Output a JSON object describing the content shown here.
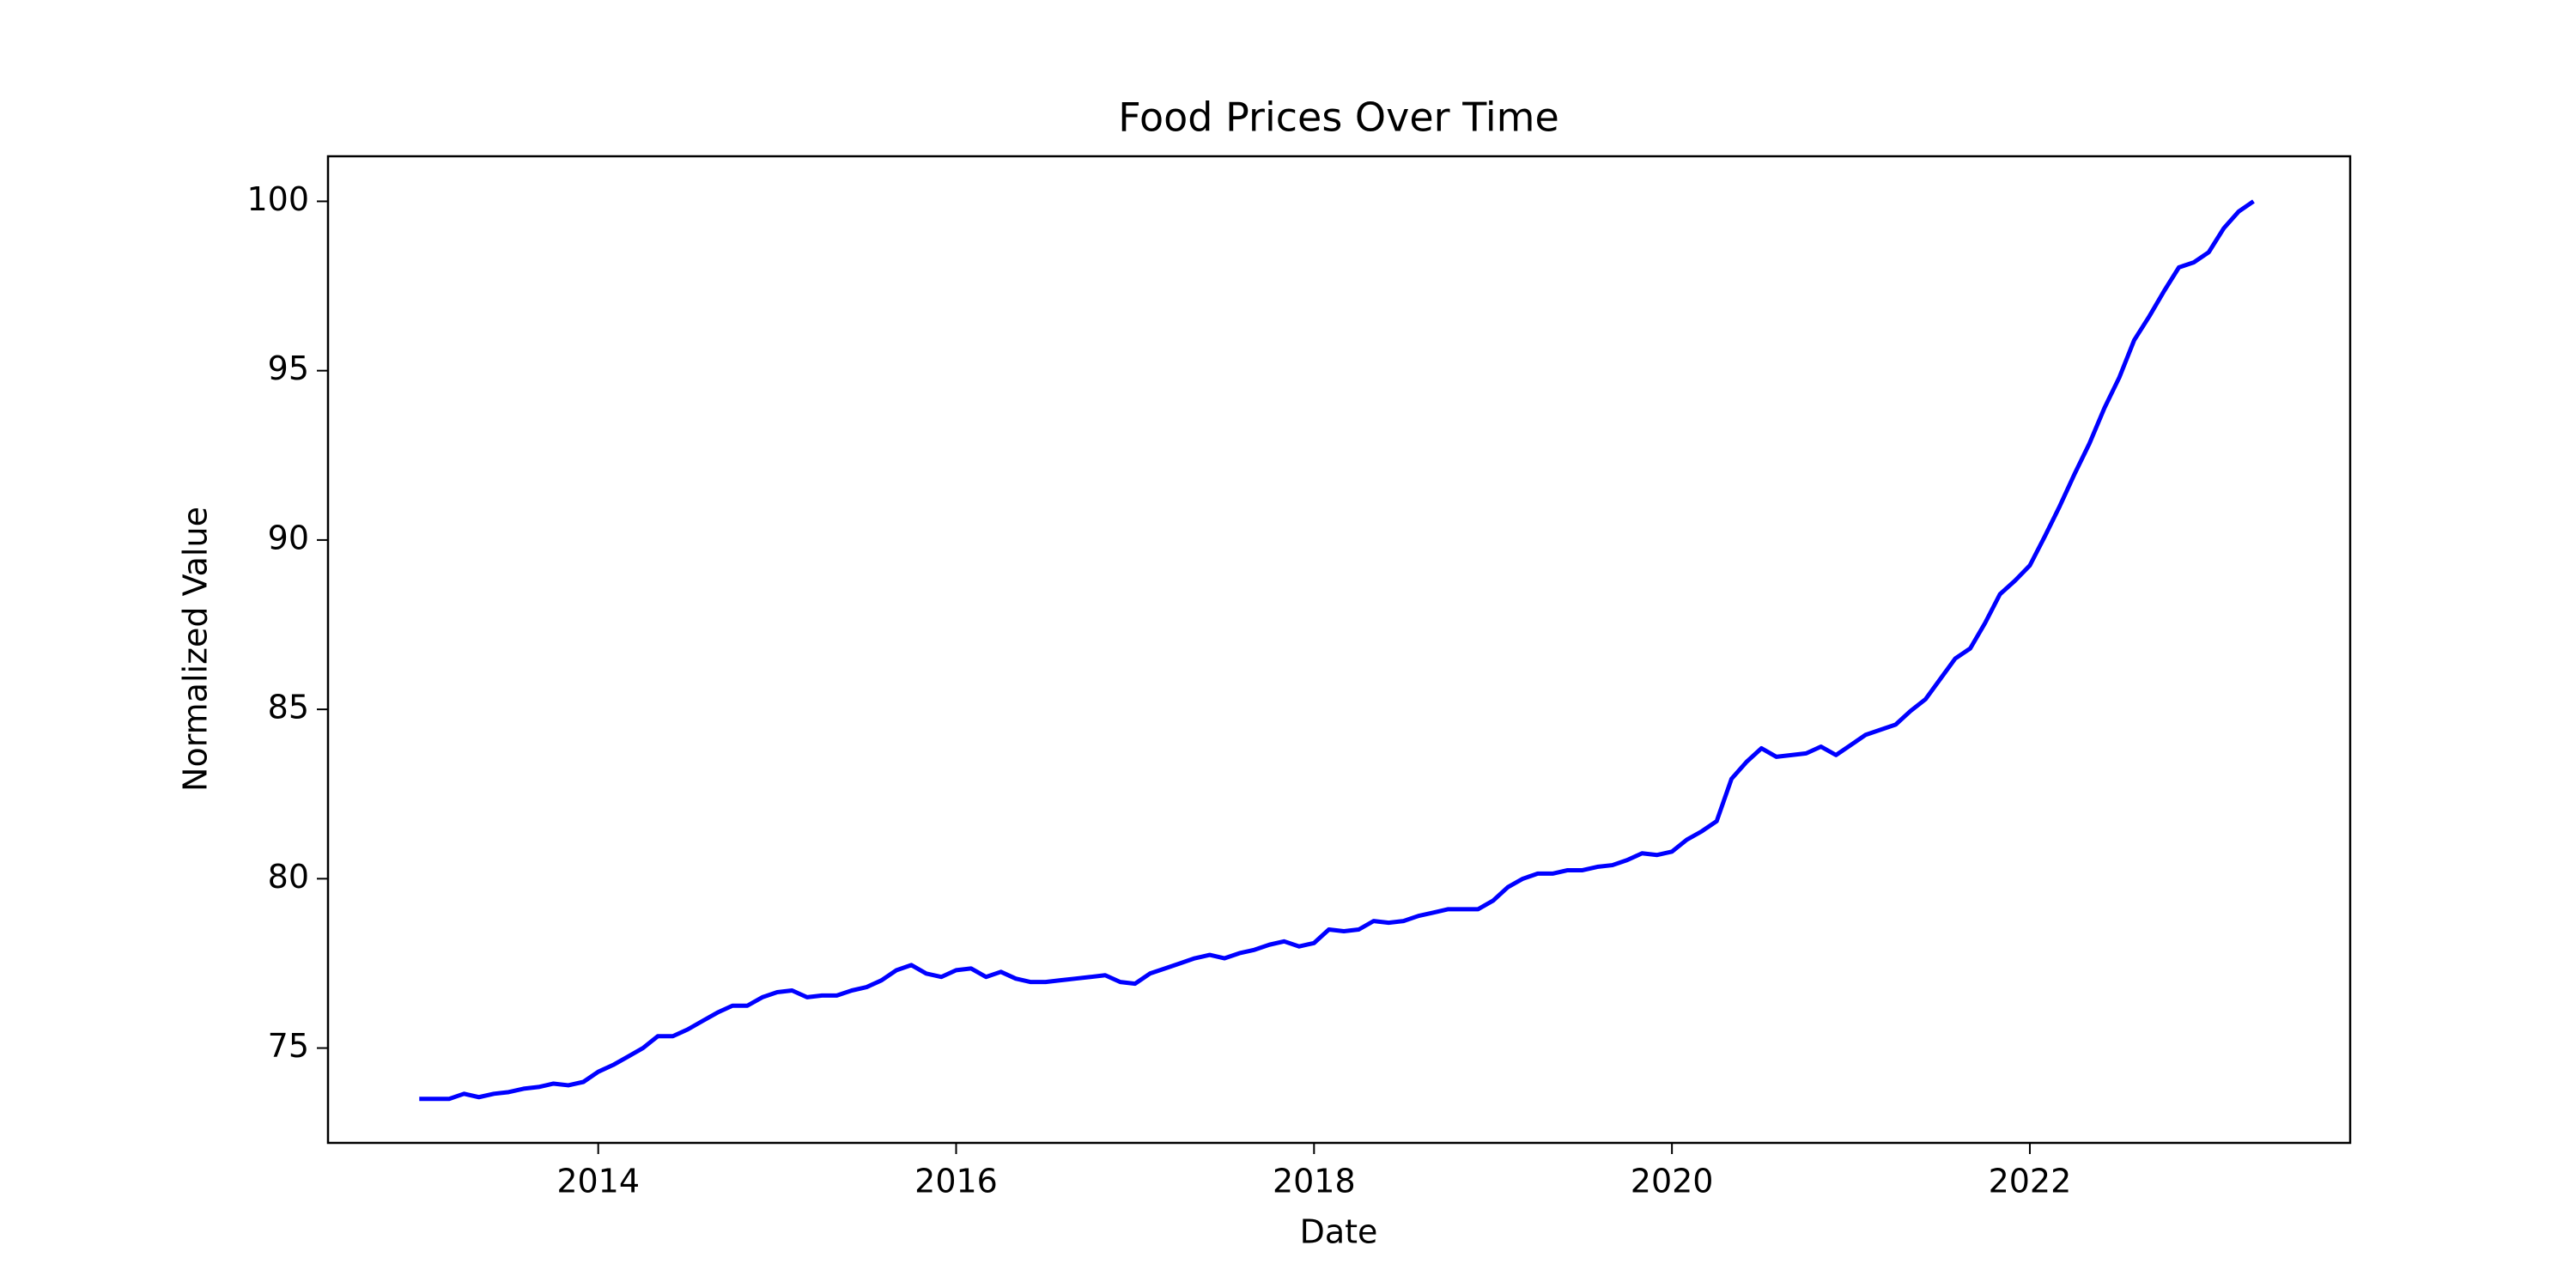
{
  "chart_data": {
    "type": "line",
    "title": "Food Prices Over Time",
    "xlabel": "Date",
    "ylabel": "Normalized Value",
    "color": "#0000ff",
    "x": [
      2013,
      2013.083,
      2013.167,
      2013.25,
      2013.333,
      2013.417,
      2013.5,
      2013.583,
      2013.667,
      2013.75,
      2013.833,
      2013.917,
      2014,
      2014.083,
      2014.167,
      2014.25,
      2014.333,
      2014.417,
      2014.5,
      2014.583,
      2014.667,
      2014.75,
      2014.833,
      2014.917,
      2015,
      2015.083,
      2015.167,
      2015.25,
      2015.333,
      2015.417,
      2015.5,
      2015.583,
      2015.667,
      2015.75,
      2015.833,
      2015.917,
      2016,
      2016.083,
      2016.167,
      2016.25,
      2016.333,
      2016.417,
      2016.5,
      2016.583,
      2016.667,
      2016.75,
      2016.833,
      2016.917,
      2017,
      2017.083,
      2017.167,
      2017.25,
      2017.333,
      2017.417,
      2017.5,
      2017.583,
      2017.667,
      2017.75,
      2017.833,
      2017.917,
      2018,
      2018.083,
      2018.167,
      2018.25,
      2018.333,
      2018.417,
      2018.5,
      2018.583,
      2018.667,
      2018.75,
      2018.833,
      2018.917,
      2019,
      2019.083,
      2019.167,
      2019.25,
      2019.333,
      2019.417,
      2019.5,
      2019.583,
      2019.667,
      2019.75,
      2019.833,
      2019.917,
      2020,
      2020.083,
      2020.167,
      2020.25,
      2020.333,
      2020.417,
      2020.5,
      2020.583,
      2020.667,
      2020.75,
      2020.833,
      2020.917,
      2021,
      2021.083,
      2021.167,
      2021.25,
      2021.333,
      2021.417,
      2021.5,
      2021.583,
      2021.667,
      2021.75,
      2021.833,
      2021.917,
      2022,
      2022.083,
      2022.167,
      2022.25,
      2022.333,
      2022.417,
      2022.5,
      2022.583,
      2022.667,
      2022.75,
      2022.833,
      2022.917,
      2023,
      2023.083,
      2023.167,
      2023.25
    ],
    "values": [
      73.5,
      73.5,
      73.5,
      73.65,
      73.55,
      73.65,
      73.7,
      73.8,
      73.85,
      73.95,
      73.9,
      74.0,
      74.3,
      74.5,
      74.75,
      75.0,
      75.35,
      75.35,
      75.55,
      75.8,
      76.05,
      76.25,
      76.25,
      76.5,
      76.65,
      76.7,
      76.5,
      76.55,
      76.55,
      76.7,
      76.8,
      77.0,
      77.3,
      77.45,
      77.2,
      77.1,
      77.3,
      77.35,
      77.1,
      77.25,
      77.05,
      76.95,
      76.95,
      77.0,
      77.05,
      77.1,
      77.15,
      76.95,
      76.9,
      77.2,
      77.35,
      77.5,
      77.65,
      77.75,
      77.65,
      77.8,
      77.9,
      78.05,
      78.15,
      78.0,
      78.1,
      78.5,
      78.45,
      78.5,
      78.75,
      78.7,
      78.75,
      78.9,
      79.0,
      79.1,
      79.1,
      79.1,
      79.35,
      79.75,
      80.0,
      80.15,
      80.15,
      80.25,
      80.25,
      80.35,
      80.4,
      80.55,
      80.75,
      80.7,
      80.8,
      81.15,
      81.4,
      81.7,
      82.95,
      83.45,
      83.85,
      83.6,
      83.65,
      83.7,
      83.9,
      83.65,
      83.95,
      84.25,
      84.4,
      84.55,
      84.95,
      85.3,
      85.9,
      86.5,
      86.8,
      87.55,
      88.4,
      88.8,
      89.25,
      90.1,
      91.0,
      91.95,
      92.85,
      93.9,
      94.8,
      95.9,
      96.6,
      97.35,
      98.05,
      98.2,
      98.5,
      99.2,
      99.7,
      100.0
    ],
    "xlim": [
      2012.49,
      2023.79
    ],
    "xticks": [
      2014,
      2016,
      2018,
      2020,
      2022
    ],
    "ylim": [
      72.2,
      101.33
    ],
    "yticks": [
      75,
      80,
      85,
      90,
      95,
      100
    ]
  }
}
